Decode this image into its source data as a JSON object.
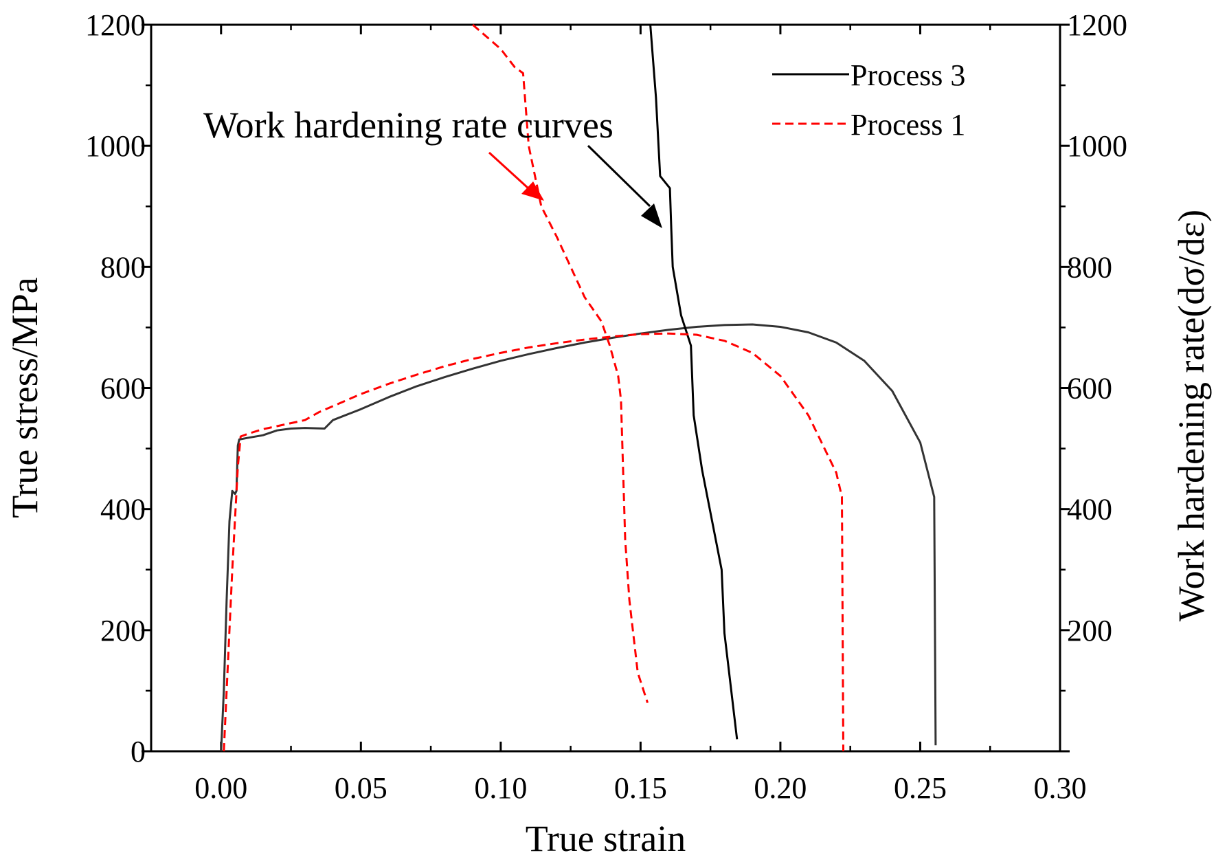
{
  "chart_data": {
    "type": "line",
    "xlabel": "True strain",
    "ylabel_left": "True stress/MPa",
    "ylabel_right": "Work hardening rate(dσ/dε)",
    "xlim": [
      -0.025,
      0.3
    ],
    "ylim_left": [
      0,
      1200
    ],
    "ylim_right": [
      0,
      1200
    ],
    "x_ticks": [
      "0.00",
      "0.05",
      "0.10",
      "0.15",
      "0.20",
      "0.25",
      "0.30"
    ],
    "y_ticks_left": [
      "0",
      "200",
      "400",
      "600",
      "800",
      "1000",
      "1200"
    ],
    "y_ticks_right": [
      "200",
      "400",
      "600",
      "800",
      "1000",
      "1200"
    ],
    "annotation": "Work hardening rate curves",
    "legend": {
      "position": "top-right",
      "entries": [
        {
          "label": "Process 3",
          "color": "#000000",
          "style": "solid"
        },
        {
          "label": "Process 1",
          "color": "#ff0000",
          "style": "dashed"
        }
      ]
    },
    "series": [
      {
        "name": "Process 3",
        "kind": "stress",
        "color": "#333333",
        "style": "solid",
        "points": [
          [
            0.0,
            0
          ],
          [
            0.001,
            100
          ],
          [
            0.002,
            250
          ],
          [
            0.003,
            380
          ],
          [
            0.004,
            430
          ],
          [
            0.005,
            425
          ],
          [
            0.0055,
            430
          ],
          [
            0.006,
            505
          ],
          [
            0.0065,
            515
          ],
          [
            0.01,
            518
          ],
          [
            0.015,
            522
          ],
          [
            0.02,
            530
          ],
          [
            0.025,
            533
          ],
          [
            0.03,
            534
          ],
          [
            0.037,
            533
          ],
          [
            0.04,
            547
          ],
          [
            0.05,
            565
          ],
          [
            0.06,
            585
          ],
          [
            0.07,
            603
          ],
          [
            0.08,
            618
          ],
          [
            0.09,
            632
          ],
          [
            0.1,
            645
          ],
          [
            0.11,
            656
          ],
          [
            0.12,
            666
          ],
          [
            0.13,
            675
          ],
          [
            0.14,
            683
          ],
          [
            0.15,
            690
          ],
          [
            0.16,
            696
          ],
          [
            0.17,
            701
          ],
          [
            0.18,
            704
          ],
          [
            0.19,
            705
          ],
          [
            0.2,
            701
          ],
          [
            0.21,
            692
          ],
          [
            0.22,
            675
          ],
          [
            0.23,
            645
          ],
          [
            0.24,
            595
          ],
          [
            0.25,
            510
          ],
          [
            0.255,
            420
          ],
          [
            0.2555,
            10
          ]
        ]
      },
      {
        "name": "Process 3",
        "kind": "work_hardening_rate",
        "color": "#000000",
        "style": "solid",
        "points": [
          [
            0.1535,
            1200
          ],
          [
            0.1555,
            1080
          ],
          [
            0.157,
            950
          ],
          [
            0.1605,
            930
          ],
          [
            0.161,
            860
          ],
          [
            0.1615,
            800
          ],
          [
            0.1645,
            720
          ],
          [
            0.168,
            670
          ],
          [
            0.169,
            555
          ],
          [
            0.172,
            465
          ],
          [
            0.179,
            300
          ],
          [
            0.18,
            195
          ],
          [
            0.1845,
            20
          ]
        ]
      },
      {
        "name": "Process 1",
        "kind": "stress",
        "color": "#ff0000",
        "style": "dashed",
        "points": [
          [
            0.001,
            0
          ],
          [
            0.002,
            100
          ],
          [
            0.004,
            300
          ],
          [
            0.006,
            470
          ],
          [
            0.007,
            520
          ],
          [
            0.01,
            525
          ],
          [
            0.015,
            532
          ],
          [
            0.02,
            537
          ],
          [
            0.025,
            542
          ],
          [
            0.03,
            547
          ],
          [
            0.035,
            560
          ],
          [
            0.04,
            570
          ],
          [
            0.05,
            590
          ],
          [
            0.06,
            607
          ],
          [
            0.07,
            622
          ],
          [
            0.08,
            636
          ],
          [
            0.09,
            648
          ],
          [
            0.1,
            658
          ],
          [
            0.11,
            667
          ],
          [
            0.12,
            674
          ],
          [
            0.13,
            680
          ],
          [
            0.14,
            685
          ],
          [
            0.15,
            689
          ],
          [
            0.16,
            690
          ],
          [
            0.17,
            688
          ],
          [
            0.18,
            678
          ],
          [
            0.19,
            658
          ],
          [
            0.2,
            620
          ],
          [
            0.21,
            555
          ],
          [
            0.22,
            460
          ],
          [
            0.222,
            420
          ],
          [
            0.2225,
            0
          ]
        ]
      },
      {
        "name": "Process 1",
        "kind": "work_hardening_rate",
        "color": "#ff0000",
        "style": "dashed",
        "points": [
          [
            0.09,
            1200
          ],
          [
            0.1,
            1160
          ],
          [
            0.105,
            1130
          ],
          [
            0.108,
            1120
          ],
          [
            0.11,
            1000
          ],
          [
            0.1145,
            900
          ],
          [
            0.12,
            850
          ],
          [
            0.13,
            750
          ],
          [
            0.136,
            710
          ],
          [
            0.139,
            670
          ],
          [
            0.142,
            620
          ],
          [
            0.143,
            580
          ],
          [
            0.1445,
            350
          ],
          [
            0.146,
            250
          ],
          [
            0.149,
            130
          ],
          [
            0.1525,
            80
          ]
        ]
      }
    ]
  }
}
